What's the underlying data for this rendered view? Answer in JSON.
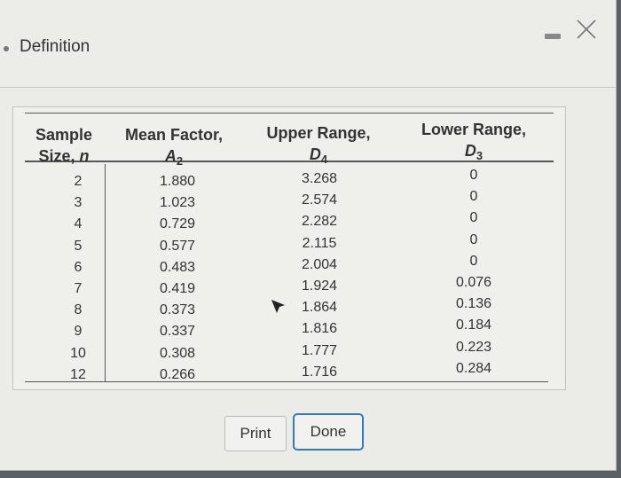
{
  "dialog": {
    "title": "Definition"
  },
  "table": {
    "headers": {
      "sample_line1": "Sample",
      "sample_line2_prefix": "Size, ",
      "sample_symbol": "n",
      "mean_line1": "Mean Factor,",
      "mean_symbol": "A",
      "mean_sub": "2",
      "upper_line1": "Upper Range,",
      "upper_symbol": "D",
      "upper_sub": "4",
      "lower_line1": "Lower Range,",
      "lower_symbol": "D",
      "lower_sub": "3"
    },
    "rows": [
      {
        "n": "2",
        "a2": "1.880",
        "d4": "3.268",
        "d3": "0"
      },
      {
        "n": "3",
        "a2": "1.023",
        "d4": "2.574",
        "d3": "0"
      },
      {
        "n": "4",
        "a2": "0.729",
        "d4": "2.282",
        "d3": "0"
      },
      {
        "n": "5",
        "a2": "0.577",
        "d4": "2.115",
        "d3": "0"
      },
      {
        "n": "6",
        "a2": "0.483",
        "d4": "2.004",
        "d3": "0"
      },
      {
        "n": "7",
        "a2": "0.419",
        "d4": "1.924",
        "d3": "0.076"
      },
      {
        "n": "8",
        "a2": "0.373",
        "d4": "1.864",
        "d3": "0.136"
      },
      {
        "n": "9",
        "a2": "0.337",
        "d4": "1.816",
        "d3": "0.184"
      },
      {
        "n": "10",
        "a2": "0.308",
        "d4": "1.777",
        "d3": "0.223"
      },
      {
        "n": "12",
        "a2": "0.266",
        "d4": "1.716",
        "d3": "0.284"
      }
    ]
  },
  "buttons": {
    "print": "Print",
    "done": "Done"
  },
  "icons": {
    "minimize": "minimize-icon",
    "close": "close-icon",
    "cursor": "mouse-pointer-icon"
  },
  "colors": {
    "done_border": "#3a78b5"
  }
}
